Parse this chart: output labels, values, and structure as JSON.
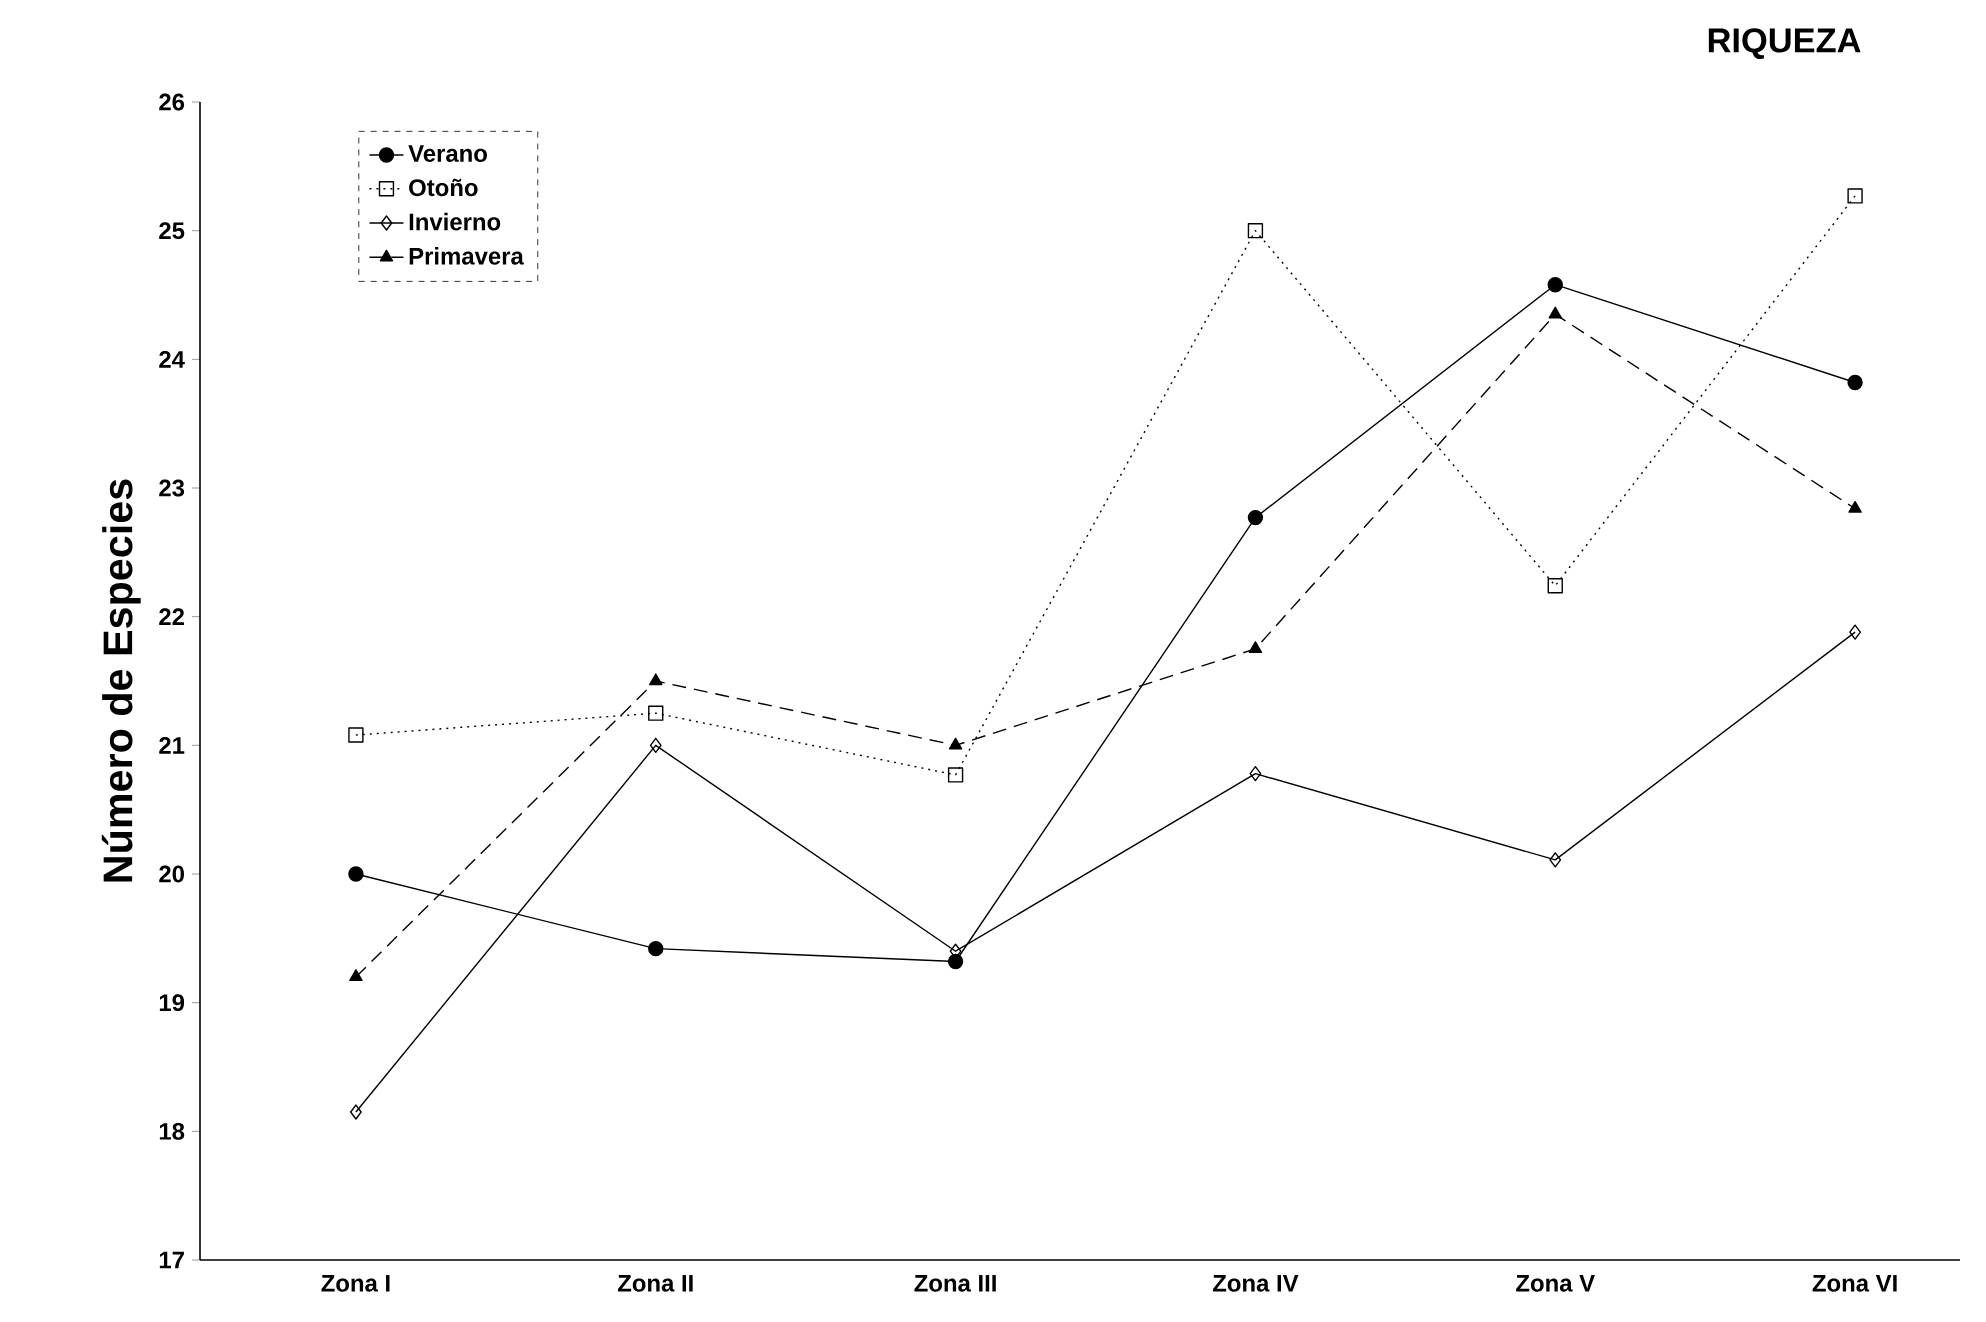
{
  "chart_data": {
    "type": "line",
    "title": "RIQUEZA",
    "ylabel": "Número de Especies",
    "categories": [
      "Zona I",
      "Zona II",
      "Zona III",
      "Zona IV",
      "Zona V",
      "Zona VI"
    ],
    "ylim": [
      17,
      26
    ],
    "yticks": [
      17,
      18,
      19,
      20,
      21,
      22,
      23,
      24,
      25,
      26
    ],
    "legend": "top left",
    "series": [
      {
        "name": "Verano",
        "color": "#000000",
        "marker": "circle",
        "line_style": "solid",
        "values": [
          20.0,
          19.42,
          19.32,
          22.77,
          24.58,
          23.82
        ]
      },
      {
        "name": "Otoño",
        "color": "#000000",
        "marker": "square",
        "line_style": "dotted",
        "values": [
          21.08,
          21.25,
          20.77,
          25.0,
          22.24,
          25.27
        ]
      },
      {
        "name": "Invierno",
        "color": "#000000",
        "marker": "diamond",
        "line_style": "solid",
        "values": [
          18.15,
          21.0,
          19.4,
          20.78,
          20.11,
          21.88
        ]
      },
      {
        "name": "Primavera",
        "color": "#000000",
        "marker": "triangle",
        "line_style": "dashed",
        "values": [
          19.2,
          21.5,
          21.0,
          21.75,
          24.35,
          22.84
        ]
      }
    ]
  }
}
